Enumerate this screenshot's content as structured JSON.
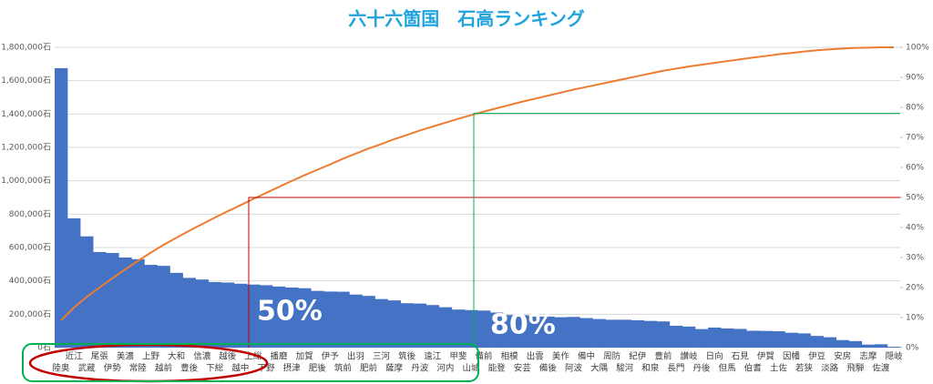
{
  "chart_data": {
    "type": "pareto",
    "title": "六十六箇国　石高ランキング",
    "annotations": [
      "50%",
      "80%"
    ],
    "categories": [
      "陸奥",
      "近江",
      "武蔵",
      "尾張",
      "伊勢",
      "美濃",
      "常陸",
      "上野",
      "越前",
      "大和",
      "豊後",
      "信濃",
      "下総",
      "越後",
      "越中",
      "上総",
      "下野",
      "播磨",
      "摂津",
      "加賀",
      "肥後",
      "伊予",
      "筑前",
      "出羽",
      "肥前",
      "三河",
      "薩摩",
      "筑後",
      "丹波",
      "遠江",
      "河内",
      "甲斐",
      "山城",
      "備前",
      "能登",
      "相模",
      "安芸",
      "出雲",
      "備後",
      "美作",
      "阿波",
      "備中",
      "大隅",
      "周防",
      "駿河",
      "紀伊",
      "和泉",
      "豊前",
      "長門",
      "讃岐",
      "丹後",
      "日向",
      "但馬",
      "石見",
      "伯耆",
      "伊賀",
      "土佐",
      "因幡",
      "若狭",
      "伊豆",
      "淡路",
      "安房",
      "飛騨",
      "志摩",
      "佐渡",
      "隠岐"
    ],
    "series": [
      {
        "type": "bar",
        "color": "#4472c4",
        "values": [
          1675000,
          775000,
          667000,
          573000,
          567000,
          540000,
          530000,
          496000,
          490000,
          448000,
          418000,
          408000,
          393000,
          390000,
          383000,
          378000,
          374000,
          366000,
          360000,
          356000,
          340000,
          336000,
          335000,
          318000,
          310000,
          291000,
          283000,
          266000,
          264000,
          255000,
          242000,
          228000,
          225000,
          222000,
          210000,
          195000,
          194000,
          186000,
          186000,
          182000,
          184000,
          177000,
          171000,
          167000,
          167000,
          164000,
          160000,
          157000,
          131000,
          126000,
          111000,
          120000,
          115000,
          112000,
          101000,
          100000,
          98000,
          89000,
          85000,
          70000,
          62000,
          45000,
          39000,
          18000,
          20000,
          5000
        ]
      },
      {
        "type": "line",
        "axis": "y2",
        "color": "#ed7d31",
        "values": [
          9.1,
          13.3,
          16.9,
          20.0,
          23.1,
          26.0,
          28.9,
          31.6,
          34.2,
          36.6,
          38.9,
          41.1,
          43.3,
          45.4,
          47.4,
          49.5,
          51.5,
          53.5,
          55.5,
          57.4,
          59.2,
          61.0,
          62.9,
          64.6,
          66.3,
          67.8,
          69.4,
          70.8,
          72.3,
          73.6,
          74.9,
          76.2,
          77.4,
          78.6,
          79.7,
          80.8,
          81.9,
          82.9,
          83.9,
          84.9,
          85.9,
          86.8,
          87.7,
          88.6,
          89.5,
          90.4,
          91.3,
          92.2,
          92.9,
          93.6,
          94.2,
          94.8,
          95.4,
          96.0,
          96.6,
          97.1,
          97.7,
          98.1,
          98.6,
          99.0,
          99.3,
          99.6,
          99.8,
          99.9,
          100.0,
          100.0
        ]
      }
    ],
    "ylim": [
      0,
      1800000
    ],
    "yticks": [
      {
        "value": 0,
        "label": "0石"
      },
      {
        "value": 200000,
        "label": "200,000石"
      },
      {
        "value": 400000,
        "label": "400,000石"
      },
      {
        "value": 600000,
        "label": "600,000石"
      },
      {
        "value": 800000,
        "label": "800,000石"
      },
      {
        "value": 1000000,
        "label": "1,000,000石"
      },
      {
        "value": 1200000,
        "label": "1,200,000石"
      },
      {
        "value": 1400000,
        "label": "1,400,000石"
      },
      {
        "value": 1600000,
        "label": "1,600,000石"
      },
      {
        "value": 1800000,
        "label": "1,800,000石"
      }
    ],
    "y2lim": [
      0,
      100
    ],
    "y2ticks": [
      {
        "value": 0,
        "label": "0%"
      },
      {
        "value": 10,
        "label": "10%"
      },
      {
        "value": 20,
        "label": "20%"
      },
      {
        "value": 30,
        "label": "30%"
      },
      {
        "value": 40,
        "label": "40%"
      },
      {
        "value": 50,
        "label": "50%"
      },
      {
        "value": 60,
        "label": "60%"
      },
      {
        "value": 70,
        "label": "70%"
      },
      {
        "value": 80,
        "label": "80%"
      },
      {
        "value": 90,
        "label": "90%"
      },
      {
        "value": 100,
        "label": "100%"
      }
    ],
    "grid": true
  }
}
